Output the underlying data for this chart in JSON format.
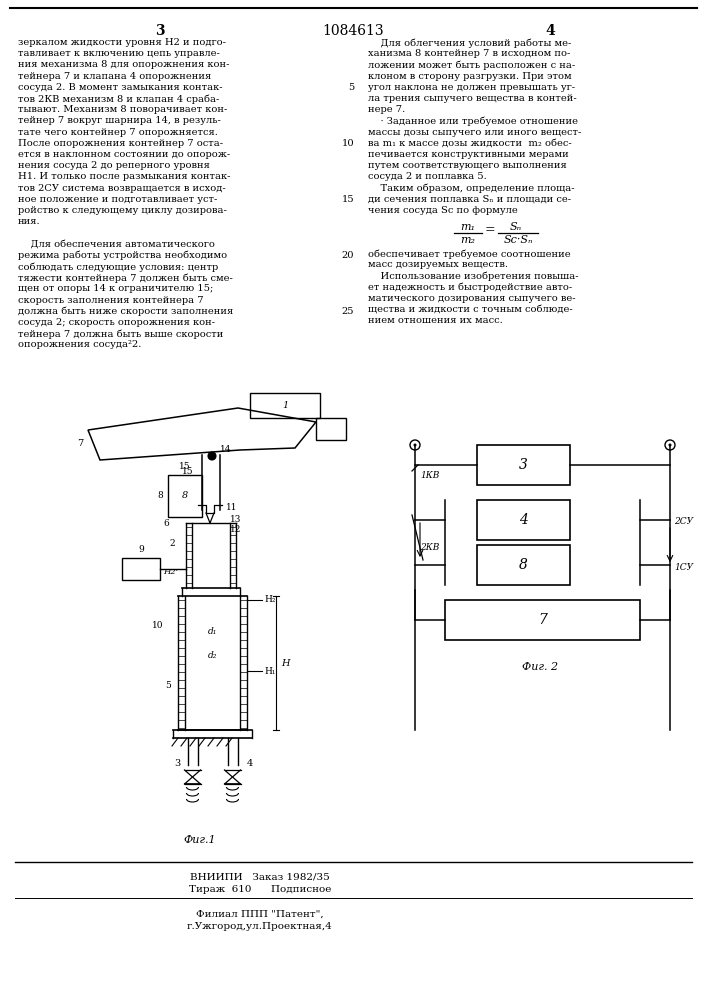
{
  "page_number_center": "1084613",
  "page_left": "3",
  "page_right": "4",
  "background_color": "#ffffff",
  "text_color": "#000000",
  "col1_text": [
    "зеркалом жидкости уровня Н2 и подго-",
    "тавливает к включению цепь управле-",
    "ния механизма 8 для опорожнения кон-",
    "тейнера 7 и клапана 4 опорожнения",
    "сосуда 2. В момент замыкания контак-",
    "тов 2КВ механизм 8 и клапан 4 сраба-",
    "тывают. Механизм 8 поворачивает кон-",
    "тейнер 7 вокруг шарнира 14, в резуль-",
    "тате чего контейнер 7 опорожняется.",
    "После опорожнения контейнер 7 оста-",
    "ется в наклонном состоянии до опорож-",
    "нения сосуда 2 до реперного уровня",
    "Н1. И только после размыкания контак-",
    "тов 2СУ система возвращается в исход-",
    "ное положение и подготавливает уст-",
    "ройство к следующему циклу дозирова-",
    "ния.",
    "",
    "    Для обеспечения автоматического",
    "режима работы устройства необходимо",
    "соблюдать следующие условия: центр",
    "тяжести контейнера 7 должен быть сме-",
    "щен от опоры 14 к ограничителю 15;",
    "скорость заполнения контейнера 7",
    "должна быть ниже скорости заполнения",
    "сосуда 2; скорость опорожнения кон-",
    "тейнера 7 должна быть выше скорости",
    "опорожнения сосуда²2."
  ],
  "col2_text": [
    "    Для облегчения условий работы ме-",
    "ханизма 8 контейнер 7 в исходном по-",
    "ложении может быть расположен с на-",
    "клоном в сторону разгрузки. При этом",
    "угол наклона не должен превышать уг-",
    "ла трения сыпучего вещества в контей-",
    "нере 7.",
    "    · Заданное или требуемое отношение",
    "массы дозы сыпучего или иного вещест-",
    "ва m₁ к массе дозы жидкости  m₂ обес-",
    "печивается конструктивными мерами",
    "путем соответствующего выполнения",
    "сосуда 2 и поплавка 5.",
    "    Таким образом, определение площа-",
    "ди сечения поплавка Sₙ и площади се-",
    "чения сосуда Sс по формуле"
  ],
  "col2_after_formula": [
    "обеспечивает требуемое соотношение",
    "масс дозируемых веществ.",
    "    Использование изобретения повыша-",
    "ет надежность и быстродействие авто-",
    "матического дозирования сыпучего ве-",
    "щества и жидкости с точным соблюде-",
    "нием отношения их масс."
  ],
  "footer_line1": "ВНИИПИ   Заказ 1982/35",
  "footer_line2": "Тираж  610      Подписное",
  "footer_line4": "Филиал ППП \"Патент\",",
  "footer_line5": "г.Ужгород,ул.Проектная,4",
  "fig1_label": "Фиг.1",
  "fig2_label": "Фиг. 2"
}
